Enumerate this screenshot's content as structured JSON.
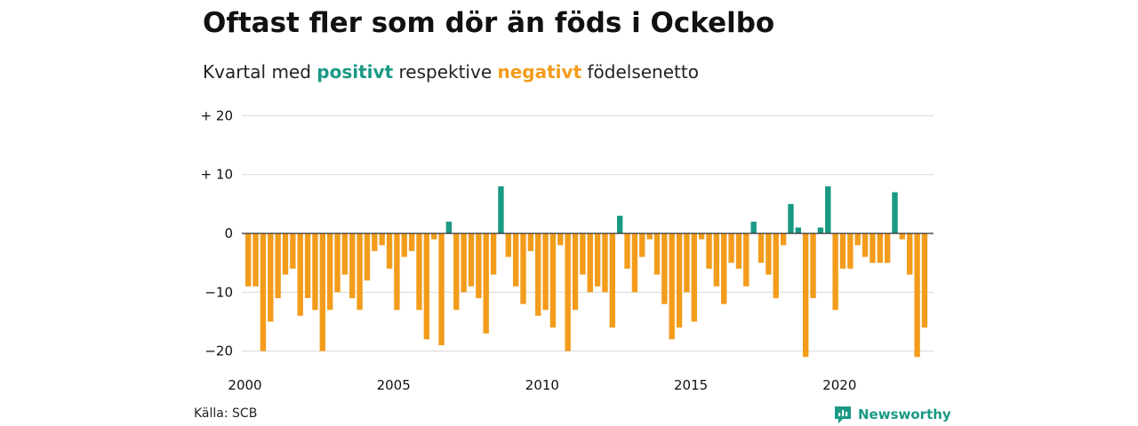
{
  "header": {
    "title": "Oftast fler som dör än föds i Ockelbo",
    "subtitle_prefix": "Kvartal med",
    "subtitle_positive": "positivt",
    "subtitle_middle": "respektive",
    "subtitle_negative": "negativt",
    "subtitle_suffix": "födelsenetto"
  },
  "footer": {
    "source": "Källa: SCB",
    "brand": "Newsworthy",
    "brand_icon": "newsworthy-logo-icon"
  },
  "colors": {
    "positive": "#1a9985",
    "negative": "#f39c1c",
    "grid": "#d9d9d9",
    "zero_line": "#333333"
  },
  "chart_data": {
    "type": "bar",
    "x_start": "2000 Q1",
    "frequency": "quarterly",
    "values": [
      -9,
      -9,
      -20,
      -15,
      -11,
      -7,
      -6,
      -14,
      -11,
      -13,
      -20,
      -13,
      -10,
      -7,
      -11,
      -13,
      -8,
      -3,
      -2,
      -6,
      -13,
      -4,
      -3,
      -13,
      -18,
      -1,
      -19,
      2,
      -13,
      -10,
      -9,
      -11,
      -17,
      -7,
      8,
      -4,
      -9,
      -12,
      -3,
      -14,
      -13,
      -16,
      -2,
      -20,
      -13,
      -7,
      -10,
      -9,
      -10,
      -16,
      3,
      -6,
      -10,
      -4,
      -1,
      -7,
      -12,
      -18,
      -16,
      -10,
      -15,
      -1,
      -6,
      -9,
      -12,
      -5,
      -6,
      -9,
      2,
      -5,
      -7,
      -11,
      -2,
      5,
      1,
      -21,
      -11,
      1,
      8,
      -13,
      -6,
      -6,
      -2,
      -4,
      -5,
      -5,
      -5,
      7,
      -1,
      -7,
      -21,
      -16
    ],
    "xticks": [
      {
        "label": "2000",
        "year": 2000
      },
      {
        "label": "2005",
        "year": 2005
      },
      {
        "label": "2010",
        "year": 2010
      },
      {
        "label": "2015",
        "year": 2015
      },
      {
        "label": "2020",
        "year": 2020
      }
    ],
    "yticks": [
      {
        "label": "+ 20",
        "value": 20
      },
      {
        "label": "+ 10",
        "value": 10
      },
      {
        "label": "0",
        "value": 0
      },
      {
        "label": "−10",
        "value": -10
      },
      {
        "label": "−20",
        "value": -20
      }
    ],
    "ylim": [
      -21,
      20
    ],
    "grid": true
  }
}
